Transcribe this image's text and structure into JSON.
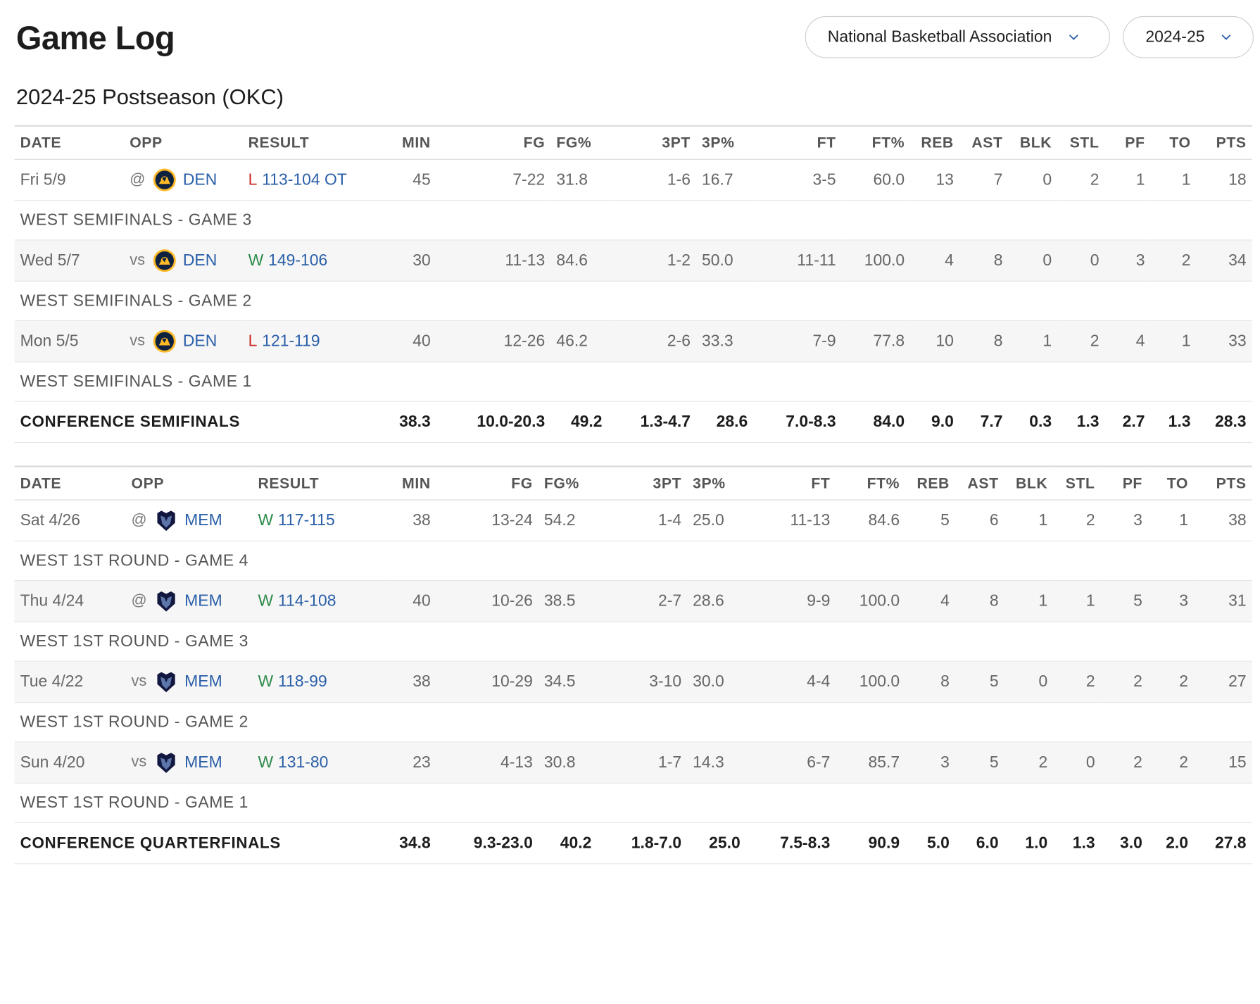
{
  "page": {
    "title": "Game Log",
    "league_select": "National Basketball Association",
    "season_select": "2024-25",
    "subtitle": "2024-25 Postseason (OKC)"
  },
  "columns": [
    "DATE",
    "OPP",
    "RESULT",
    "MIN",
    "FG",
    "FG%",
    "3PT",
    "3P%",
    "FT",
    "FT%",
    "REB",
    "AST",
    "BLK",
    "STL",
    "PF",
    "TO",
    "PTS"
  ],
  "sections": [
    {
      "games": [
        {
          "date": "Fri 5/9",
          "pre": "@",
          "team": "DEN",
          "logo": "nuggets-logo-icon",
          "wl": "L",
          "score": "113-104 OT",
          "stats": [
            "45",
            "7-22",
            "31.8",
            "1-6",
            "16.7",
            "3-5",
            "60.0",
            "13",
            "7",
            "0",
            "2",
            "1",
            "1",
            "18"
          ],
          "note": "WEST SEMIFINALS - GAME 3"
        },
        {
          "date": "Wed 5/7",
          "pre": "vs",
          "team": "DEN",
          "logo": "nuggets-logo-icon",
          "wl": "W",
          "score": "149-106",
          "stats": [
            "30",
            "11-13",
            "84.6",
            "1-2",
            "50.0",
            "11-11",
            "100.0",
            "4",
            "8",
            "0",
            "0",
            "3",
            "2",
            "34"
          ],
          "note": "WEST SEMIFINALS - GAME 2"
        },
        {
          "date": "Mon 5/5",
          "pre": "vs",
          "team": "DEN",
          "logo": "nuggets-logo-icon",
          "wl": "L",
          "score": "121-119",
          "stats": [
            "40",
            "12-26",
            "46.2",
            "2-6",
            "33.3",
            "7-9",
            "77.8",
            "10",
            "8",
            "1",
            "2",
            "4",
            "1",
            "33"
          ],
          "note": "WEST SEMIFINALS - GAME 1"
        }
      ],
      "total": {
        "label": "CONFERENCE SEMIFINALS",
        "stats": [
          "38.3",
          "10.0-20.3",
          "49.2",
          "1.3-4.7",
          "28.6",
          "7.0-8.3",
          "84.0",
          "9.0",
          "7.7",
          "0.3",
          "1.3",
          "2.7",
          "1.3",
          "28.3"
        ]
      }
    },
    {
      "games": [
        {
          "date": "Sat 4/26",
          "pre": "@",
          "team": "MEM",
          "logo": "grizzlies-logo-icon",
          "wl": "W",
          "score": "117-115",
          "stats": [
            "38",
            "13-24",
            "54.2",
            "1-4",
            "25.0",
            "11-13",
            "84.6",
            "5",
            "6",
            "1",
            "2",
            "3",
            "1",
            "38"
          ],
          "note": "WEST 1ST ROUND - GAME 4"
        },
        {
          "date": "Thu 4/24",
          "pre": "@",
          "team": "MEM",
          "logo": "grizzlies-logo-icon",
          "wl": "W",
          "score": "114-108",
          "stats": [
            "40",
            "10-26",
            "38.5",
            "2-7",
            "28.6",
            "9-9",
            "100.0",
            "4",
            "8",
            "1",
            "1",
            "5",
            "3",
            "31"
          ],
          "note": "WEST 1ST ROUND - GAME 3"
        },
        {
          "date": "Tue 4/22",
          "pre": "vs",
          "team": "MEM",
          "logo": "grizzlies-logo-icon",
          "wl": "W",
          "score": "118-99",
          "stats": [
            "38",
            "10-29",
            "34.5",
            "3-10",
            "30.0",
            "4-4",
            "100.0",
            "8",
            "5",
            "0",
            "2",
            "2",
            "2",
            "27"
          ],
          "note": "WEST 1ST ROUND - GAME 2"
        },
        {
          "date": "Sun 4/20",
          "pre": "vs",
          "team": "MEM",
          "logo": "grizzlies-logo-icon",
          "wl": "W",
          "score": "131-80",
          "stats": [
            "23",
            "4-13",
            "30.8",
            "1-7",
            "14.3",
            "6-7",
            "85.7",
            "3",
            "5",
            "2",
            "0",
            "2",
            "2",
            "15"
          ],
          "note": "WEST 1ST ROUND - GAME 1"
        }
      ],
      "total": {
        "label": "CONFERENCE QUARTERFINALS",
        "stats": [
          "34.8",
          "9.3-23.0",
          "40.2",
          "1.8-7.0",
          "25.0",
          "7.5-8.3",
          "90.9",
          "5.0",
          "6.0",
          "1.0",
          "1.3",
          "3.0",
          "2.0",
          "27.8"
        ]
      }
    }
  ],
  "colors": {
    "win": "#2e8b4a",
    "loss": "#cc2a2a",
    "link": "#2a5fa8"
  }
}
